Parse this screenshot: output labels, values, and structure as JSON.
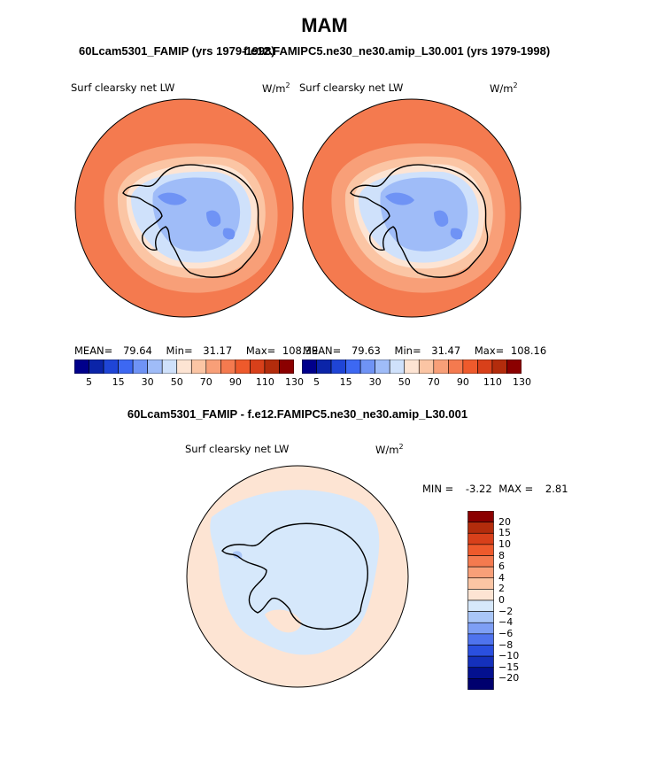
{
  "figure": {
    "title": "MAM",
    "left_case": "60Lcam5301_FAMIP (yrs 1979-1998)",
    "right_case": "f.e12.FAMIPC5.ne30_ne30.amip_L30.001 (yrs 1979-1998)",
    "diff_title": "60Lcam5301_FAMIP - f.e12.FAMIPC5.ne30_ne30.amip_L30.001"
  },
  "panels": [
    {
      "id": "left",
      "variable": "Surf clearsky net LW",
      "units": "W/m",
      "units_sup": "2",
      "stats": {
        "mean_label": "MEAN=",
        "mean": "79.64",
        "min_label": "Min=",
        "min": "31.17",
        "max_label": "Max=",
        "max": "108.39"
      }
    },
    {
      "id": "right",
      "variable": "Surf clearsky net LW",
      "units": "W/m",
      "units_sup": "2",
      "stats": {
        "mean_label": "MEAN=",
        "mean": "79.63",
        "min_label": "Min=",
        "min": "31.47",
        "max_label": "Max=",
        "max": "108.16"
      }
    }
  ],
  "diff_panel": {
    "variable": "Surf clearsky net LW",
    "units": "W/m",
    "units_sup": "2",
    "min_label": "MIN =",
    "min": "-3.22",
    "max_label": "MAX =",
    "max": "2.81"
  },
  "colorbar_main": {
    "tick_labels": [
      "5",
      "15",
      "30",
      "50",
      "70",
      "90",
      "110",
      "130"
    ],
    "colors": [
      "#00008b",
      "#0b24a8",
      "#1f45d6",
      "#3d68f2",
      "#6f93f5",
      "#9fbcf8",
      "#cfe1fb",
      "#fde4d3",
      "#fbc5a4",
      "#f89f78",
      "#f47a4f",
      "#ee5a2c",
      "#d8401a",
      "#b32c0c",
      "#8b0000"
    ]
  },
  "colorbar_diff": {
    "levels": [
      "20",
      "15",
      "10",
      "8",
      "6",
      "4",
      "2",
      "0",
      "−2",
      "−4",
      "−6",
      "−8",
      "−10",
      "−15",
      "−20"
    ],
    "colors": [
      "#8b0000",
      "#b32c0c",
      "#d8401a",
      "#ee5a2c",
      "#f47a4f",
      "#f89f78",
      "#fbc5a4",
      "#fde4d3",
      "#d6e8fb",
      "#a9c6f8",
      "#7e9ff5",
      "#4f73ee",
      "#2a4fe0",
      "#1430bc",
      "#03108f",
      "#00006e"
    ]
  },
  "map_colors": {
    "ocean_high": "#f47a4f",
    "ocean_mid": "#f89f78",
    "ocean_low": "#fbc5a4",
    "coast": "#fde4d3",
    "ice_light": "#cfe1fb",
    "ice_mid": "#9fbcf8",
    "ice_dark": "#6f93f5",
    "diff_pos": "#fde4d3",
    "diff_neg": "#d6e8fb",
    "diff_neg2": "#a9c6f8"
  }
}
